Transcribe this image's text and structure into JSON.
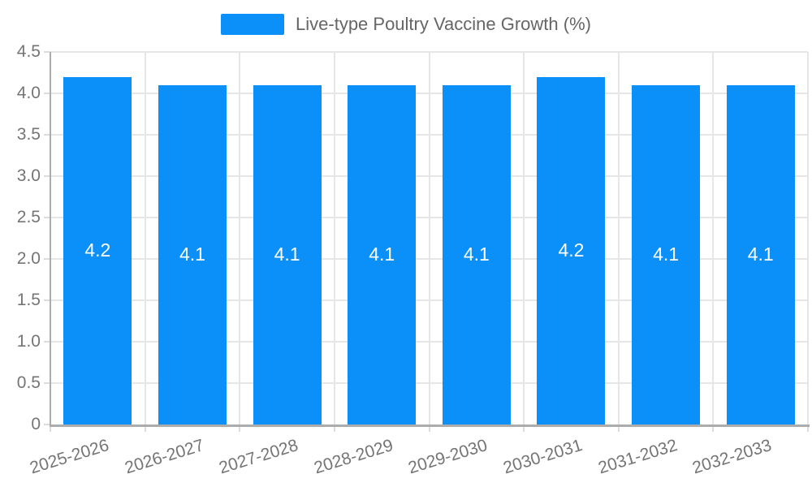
{
  "legend": {
    "label": "Live-type Poultry Vaccine Growth (%)"
  },
  "chart_data": {
    "type": "bar",
    "title": "Live-type Poultry Vaccine Growth (%)",
    "categories": [
      "2025-2026",
      "2026-2027",
      "2027-2028",
      "2028-2029",
      "2029-2030",
      "2030-2031",
      "2031-2032",
      "2032-2033"
    ],
    "values": [
      4.2,
      4.1,
      4.1,
      4.1,
      4.1,
      4.2,
      4.1,
      4.1
    ],
    "value_labels": [
      "4.2",
      "4.1",
      "4.1",
      "4.1",
      "4.1",
      "4.2",
      "4.1",
      "4.1"
    ],
    "xlabel": "",
    "ylabel": "",
    "ylim": [
      0,
      4.5
    ],
    "ytick_values": [
      0,
      0.5,
      1,
      1.5,
      2,
      2.5,
      3,
      3.5,
      4,
      4.5
    ],
    "ytick_labels": [
      "0",
      "0.5",
      "1.0",
      "1.5",
      "2.0",
      "2.5",
      "3.0",
      "3.5",
      "4.0",
      "4.5"
    ],
    "grid": "on",
    "legend_position": "top-center",
    "value_label_position": "inside-middle"
  },
  "colors": {
    "bar": "#0A90F8",
    "grid": "#E6E6E6",
    "axis_line": "#ACACAC",
    "tick": "#DCDCDC",
    "axis_text": "#757575",
    "legend_text": "#666666",
    "value_label": "#FFFFFF",
    "background": "#FFFFFF"
  }
}
